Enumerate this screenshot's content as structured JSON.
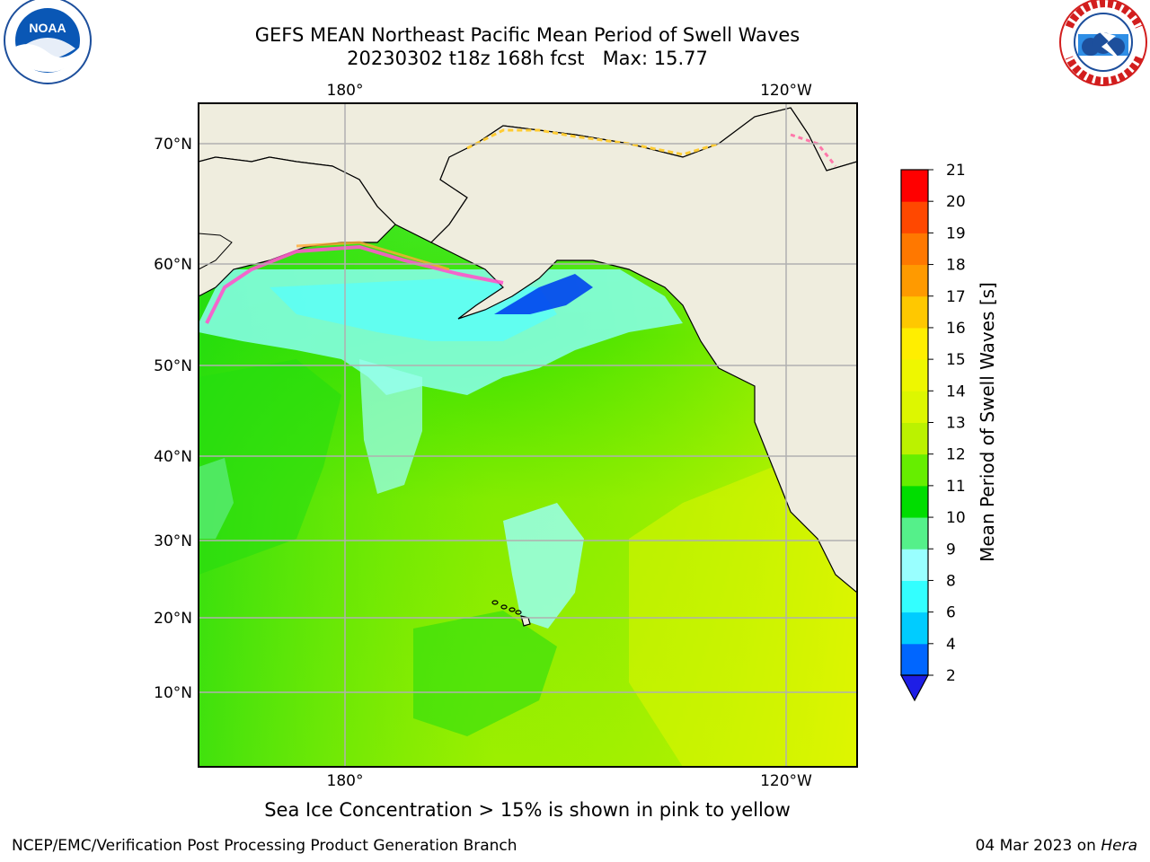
{
  "title": {
    "line1": "GEFS MEAN Northeast Pacific Mean Period of Swell Waves",
    "line2": "20230302 t18z 168h fcst   Max: 15.77"
  },
  "logos": {
    "left": {
      "icon": "noaa-logo",
      "text": "NOAA",
      "ring_text": "NATIONAL OCEANIC AND ATMOSPHERIC ADMINISTRATION · U.S. DEPARTMENT OF COMMERCE"
    },
    "right": {
      "icon": "nws-logo",
      "ring_text": "NATIONAL WEATHER SERVICE"
    }
  },
  "map": {
    "lon_labels": [
      "180°",
      "120°W"
    ],
    "lat_labels": [
      "70°N",
      "60°N",
      "50°N",
      "40°N",
      "30°N",
      "20°N",
      "10°N"
    ],
    "colors": {
      "land": "#efedde",
      "coast": "#000000",
      "grid": "#b0b0b0"
    }
  },
  "colorbar": {
    "label": "Mean Period of Swell Waves [s]",
    "ticks": [
      "2",
      "4",
      "6",
      "8",
      "9",
      "10",
      "11",
      "12",
      "13",
      "14",
      "15",
      "16",
      "17",
      "18",
      "19",
      "20",
      "21"
    ],
    "colors": [
      "#0066ff",
      "#00ccff",
      "#33ffff",
      "#99ffff",
      "#55f08a",
      "#00dd00",
      "#66ee00",
      "#bbf200",
      "#ddf700",
      "#eef700",
      "#ffee00",
      "#ffc800",
      "#ff9a00",
      "#ff7800",
      "#ff4800",
      "#ff0000"
    ],
    "under_color": "#1e1ee6"
  },
  "caption": "Sea Ice Concentration > 15% is shown in pink to yellow",
  "footer": {
    "left": "NCEP/EMC/Verification Post Processing Product Generation Branch",
    "right_date": "04 Mar 2023 on ",
    "right_host": "Hera"
  }
}
